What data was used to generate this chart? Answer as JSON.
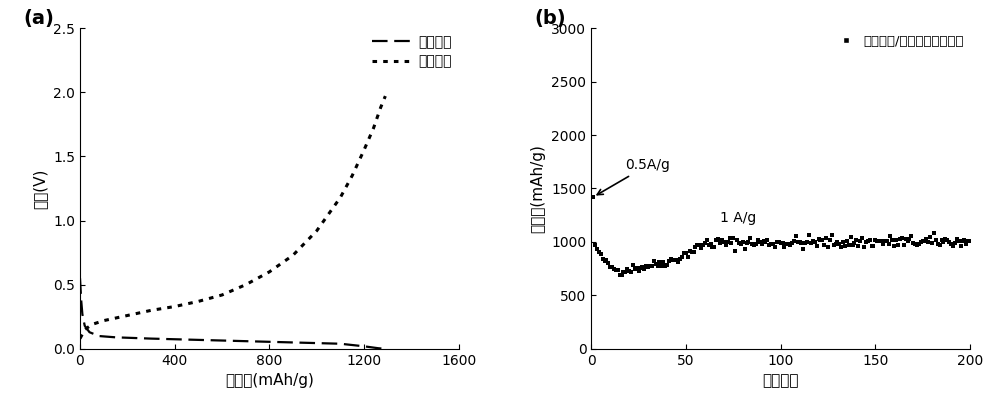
{
  "panel_a": {
    "label": "(a)",
    "xlabel": "比容量(mAh/g)",
    "ylabel": "电压(V)",
    "xlim": [
      0,
      1600
    ],
    "ylim": [
      0,
      2.5
    ],
    "xticks": [
      0,
      400,
      800,
      1200,
      1600
    ],
    "yticks": [
      0.0,
      0.5,
      1.0,
      1.5,
      2.0,
      2.5
    ],
    "legend_charge": "充电曲线",
    "legend_discharge": "放电曲线",
    "charge_x": [
      0,
      5,
      10,
      20,
      40,
      80,
      150,
      300,
      500,
      700,
      900,
      1100,
      1200,
      1260,
      1290
    ],
    "charge_y": [
      0.55,
      0.38,
      0.27,
      0.18,
      0.13,
      0.1,
      0.09,
      0.08,
      0.07,
      0.06,
      0.05,
      0.04,
      0.02,
      0.005,
      0.0
    ],
    "discharge_x": [
      0,
      20,
      50,
      100,
      200,
      300,
      400,
      500,
      600,
      700,
      800,
      900,
      1000,
      1100,
      1150,
      1200,
      1240,
      1270,
      1290
    ],
    "discharge_y": [
      0.08,
      0.15,
      0.19,
      0.22,
      0.26,
      0.3,
      0.33,
      0.37,
      0.42,
      0.5,
      0.6,
      0.73,
      0.92,
      1.18,
      1.35,
      1.55,
      1.72,
      1.88,
      1.97
    ]
  },
  "panel_b": {
    "label": "(b)",
    "xlabel": "循环圈数",
    "ylabel": "比容量(mAh/g)",
    "xlim": [
      0,
      200
    ],
    "ylim": [
      0,
      3000
    ],
    "xticks": [
      0,
      50,
      100,
      150,
      200
    ],
    "yticks": [
      0,
      500,
      1000,
      1500,
      2000,
      2500,
      3000
    ],
    "legend": "氧化亚硯/石墨烯纳米带充电",
    "annotation1": "0.5A/g",
    "annotation2": "1 A/g"
  }
}
